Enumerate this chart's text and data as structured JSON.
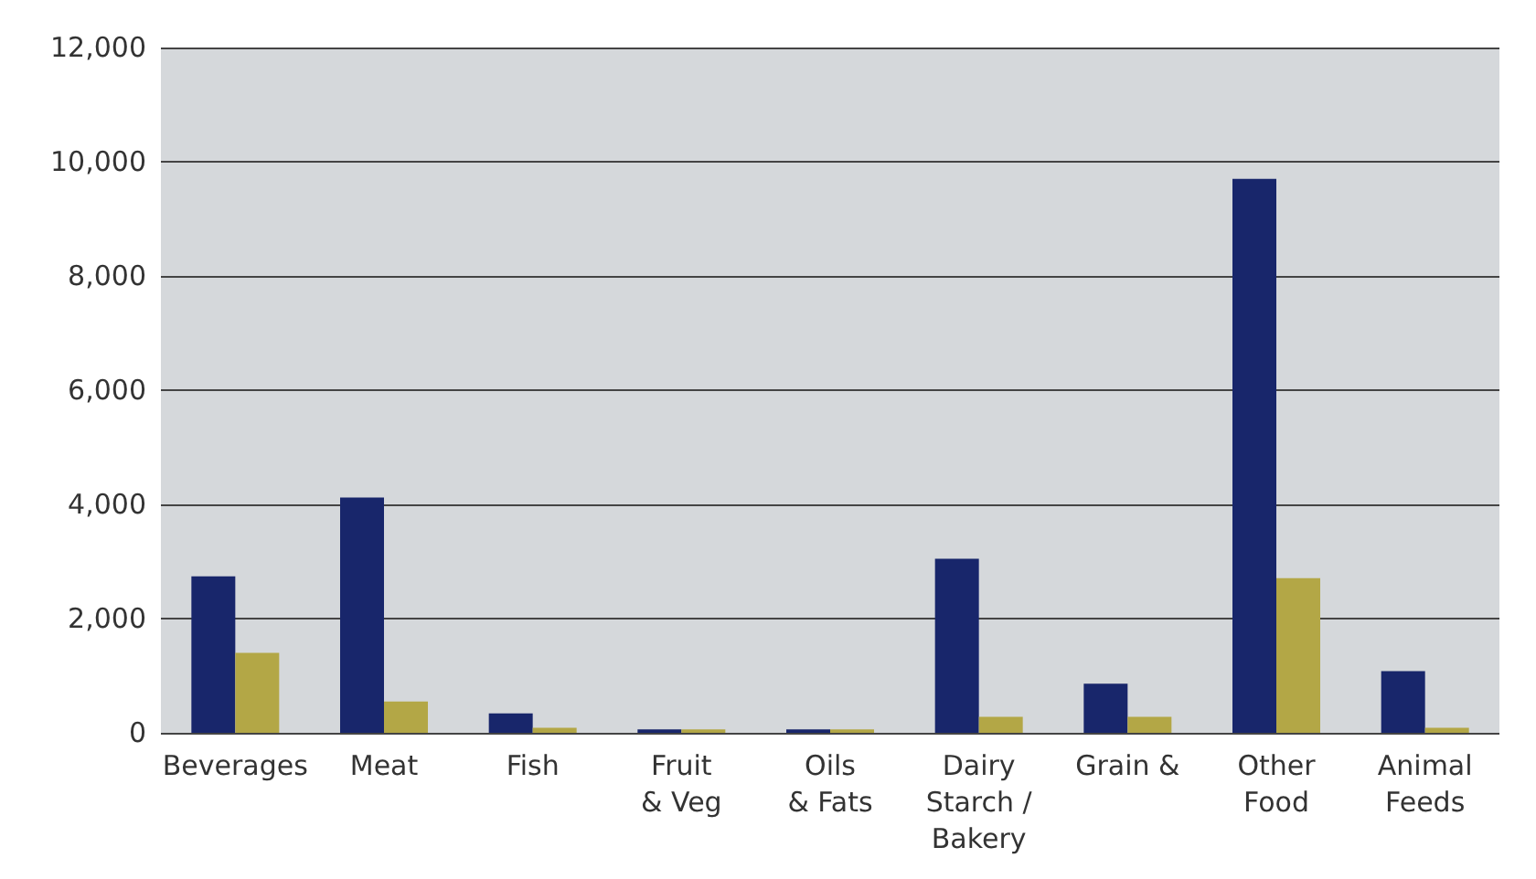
{
  "chart_data": {
    "type": "bar",
    "categories": [
      "Beverages",
      "Meat",
      "Fish",
      "Fruit\n& Veg",
      "Oils\n& Fats",
      "Dairy\nStarch /\nBakery",
      "Grain &",
      "Other\nFood",
      "Animal\nFeeds"
    ],
    "series": [
      {
        "color": "#18266b",
        "values": [
          2740,
          4120,
          340,
          60,
          60,
          3050,
          860,
          9700,
          1080
        ]
      },
      {
        "color": "#b3a746",
        "values": [
          1400,
          550,
          90,
          60,
          60,
          280,
          280,
          2710,
          90
        ]
      }
    ],
    "ylim": [
      0,
      12000
    ],
    "yticks": [
      {
        "value": 0,
        "label": "0"
      },
      {
        "value": 2000,
        "label": "2,000"
      },
      {
        "value": 4000,
        "label": "4,000"
      },
      {
        "value": 6000,
        "label": "6,000"
      },
      {
        "value": 8000,
        "label": "8,000"
      },
      {
        "value": 10000,
        "label": "10,000"
      },
      {
        "value": 12000,
        "label": "12,000"
      }
    ],
    "grid": "y"
  }
}
